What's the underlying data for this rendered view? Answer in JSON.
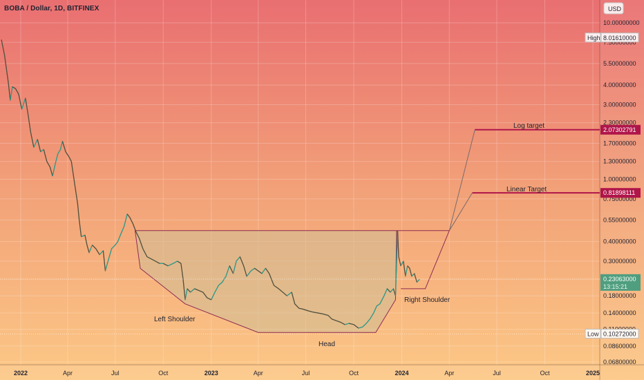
{
  "header": {
    "title": "BOBA / Dollar, 1D, BITFINEX"
  },
  "chart_data": {
    "type": "candlestick-line",
    "title": "BOBA / Dollar, 1D, BITFINEX",
    "y_scale": "log",
    "currency_label": "USD",
    "y_ticks": [
      {
        "v": 10.0,
        "label": "10.00000000"
      },
      {
        "v": 7.5,
        "label": "7.50000000"
      },
      {
        "v": 5.5,
        "label": "5.50000000"
      },
      {
        "v": 4.0,
        "label": "4.00000000"
      },
      {
        "v": 3.0,
        "label": "3.00000000"
      },
      {
        "v": 2.3,
        "label": "2.30000000"
      },
      {
        "v": 1.7,
        "label": "1.70000000"
      },
      {
        "v": 1.3,
        "label": "1.30000000"
      },
      {
        "v": 1.0,
        "label": "1.00000000"
      },
      {
        "v": 0.75,
        "label": "0.75000000"
      },
      {
        "v": 0.55,
        "label": "0.55000000"
      },
      {
        "v": 0.4,
        "label": "0.40000000"
      },
      {
        "v": 0.3,
        "label": "0.30000000"
      },
      {
        "v": 0.23,
        "label": "0.23000000"
      },
      {
        "v": 0.18,
        "label": "0.18000000"
      },
      {
        "v": 0.14,
        "label": "0.14000000"
      },
      {
        "v": 0.11,
        "label": "0.11000000"
      },
      {
        "v": 0.086,
        "label": "0.08600000"
      },
      {
        "v": 0.068,
        "label": "0.06800000"
      }
    ],
    "x_ticks": [
      {
        "d": "2022-01-01",
        "label": "2022",
        "bold": true
      },
      {
        "d": "2022-04-01",
        "label": "Apr"
      },
      {
        "d": "2022-07-01",
        "label": "Jul"
      },
      {
        "d": "2022-10-01",
        "label": "Oct"
      },
      {
        "d": "2023-01-01",
        "label": "2023",
        "bold": true
      },
      {
        "d": "2023-04-01",
        "label": "Apr"
      },
      {
        "d": "2023-07-01",
        "label": "Jul"
      },
      {
        "d": "2023-10-01",
        "label": "Oct"
      },
      {
        "d": "2024-01-01",
        "label": "2024",
        "bold": true
      },
      {
        "d": "2024-04-01",
        "label": "Apr"
      },
      {
        "d": "2024-07-01",
        "label": "Jul"
      },
      {
        "d": "2024-10-01",
        "label": "Oct"
      },
      {
        "d": "2025-01-01",
        "label": "2025",
        "bold": true
      }
    ],
    "series": [
      {
        "values": [
          [
            "2021-11-25",
            7.8
          ],
          [
            "2021-12-01",
            6.2
          ],
          [
            "2021-12-08",
            4.2
          ],
          [
            "2021-12-12",
            3.2
          ],
          [
            "2021-12-16",
            3.9
          ],
          [
            "2021-12-22",
            3.8
          ],
          [
            "2021-12-28",
            3.5
          ],
          [
            "2022-01-03",
            2.8
          ],
          [
            "2022-01-10",
            3.3
          ],
          [
            "2022-01-15",
            2.6
          ],
          [
            "2022-01-20",
            2.0
          ],
          [
            "2022-01-26",
            1.6
          ],
          [
            "2022-02-02",
            1.8
          ],
          [
            "2022-02-08",
            1.5
          ],
          [
            "2022-02-14",
            1.55
          ],
          [
            "2022-02-20",
            1.3
          ],
          [
            "2022-02-26",
            1.2
          ],
          [
            "2022-03-03",
            1.05
          ],
          [
            "2022-03-08",
            1.25
          ],
          [
            "2022-03-13",
            1.45
          ],
          [
            "2022-03-18",
            1.55
          ],
          [
            "2022-03-22",
            1.75
          ],
          [
            "2022-03-28",
            1.5
          ],
          [
            "2022-04-03",
            1.4
          ],
          [
            "2022-04-08",
            1.3
          ],
          [
            "2022-04-14",
            0.95
          ],
          [
            "2022-04-20",
            0.7
          ],
          [
            "2022-04-23",
            0.55
          ],
          [
            "2022-04-27",
            0.43
          ],
          [
            "2022-05-04",
            0.44
          ],
          [
            "2022-05-08",
            0.38
          ],
          [
            "2022-05-12",
            0.34
          ],
          [
            "2022-05-18",
            0.38
          ],
          [
            "2022-05-25",
            0.36
          ],
          [
            "2022-06-01",
            0.33
          ],
          [
            "2022-06-08",
            0.35
          ],
          [
            "2022-06-12",
            0.26
          ],
          [
            "2022-06-16",
            0.29
          ],
          [
            "2022-06-24",
            0.36
          ],
          [
            "2022-07-01",
            0.38
          ],
          [
            "2022-07-06",
            0.4
          ],
          [
            "2022-07-12",
            0.45
          ],
          [
            "2022-07-18",
            0.5
          ],
          [
            "2022-07-24",
            0.6
          ],
          [
            "2022-07-29",
            0.57
          ],
          [
            "2022-08-04",
            0.52
          ],
          [
            "2022-08-10",
            0.46
          ],
          [
            "2022-08-16",
            0.42
          ],
          [
            "2022-08-23",
            0.36
          ],
          [
            "2022-08-31",
            0.32
          ],
          [
            "2022-09-08",
            0.31
          ],
          [
            "2022-09-16",
            0.3
          ],
          [
            "2022-09-24",
            0.29
          ],
          [
            "2022-10-01",
            0.29
          ],
          [
            "2022-10-10",
            0.28
          ],
          [
            "2022-10-20",
            0.29
          ],
          [
            "2022-10-28",
            0.3
          ],
          [
            "2022-11-04",
            0.29
          ],
          [
            "2022-11-08",
            0.23
          ],
          [
            "2022-11-12",
            0.17
          ],
          [
            "2022-11-16",
            0.2
          ],
          [
            "2022-11-22",
            0.19
          ],
          [
            "2022-11-30",
            0.2
          ],
          [
            "2022-12-08",
            0.195
          ],
          [
            "2022-12-16",
            0.19
          ],
          [
            "2022-12-24",
            0.175
          ],
          [
            "2023-01-01",
            0.17
          ],
          [
            "2023-01-08",
            0.19
          ],
          [
            "2023-01-15",
            0.21
          ],
          [
            "2023-01-22",
            0.22
          ],
          [
            "2023-01-29",
            0.24
          ],
          [
            "2023-02-05",
            0.28
          ],
          [
            "2023-02-12",
            0.25
          ],
          [
            "2023-02-18",
            0.3
          ],
          [
            "2023-02-25",
            0.32
          ],
          [
            "2023-03-04",
            0.28
          ],
          [
            "2023-03-10",
            0.24
          ],
          [
            "2023-03-18",
            0.26
          ],
          [
            "2023-03-25",
            0.27
          ],
          [
            "2023-04-01",
            0.26
          ],
          [
            "2023-04-08",
            0.25
          ],
          [
            "2023-04-15",
            0.27
          ],
          [
            "2023-04-22",
            0.25
          ],
          [
            "2023-05-01",
            0.21
          ],
          [
            "2023-05-10",
            0.2
          ],
          [
            "2023-05-18",
            0.19
          ],
          [
            "2023-05-26",
            0.18
          ],
          [
            "2023-06-04",
            0.19
          ],
          [
            "2023-06-10",
            0.16
          ],
          [
            "2023-06-18",
            0.15
          ],
          [
            "2023-06-26",
            0.148
          ],
          [
            "2023-07-04",
            0.145
          ],
          [
            "2023-07-14",
            0.142
          ],
          [
            "2023-07-24",
            0.14
          ],
          [
            "2023-08-03",
            0.138
          ],
          [
            "2023-08-13",
            0.135
          ],
          [
            "2023-08-20",
            0.128
          ],
          [
            "2023-08-28",
            0.125
          ],
          [
            "2023-09-06",
            0.122
          ],
          [
            "2023-09-14",
            0.118
          ],
          [
            "2023-09-22",
            0.12
          ],
          [
            "2023-10-01",
            0.118
          ],
          [
            "2023-10-10",
            0.112
          ],
          [
            "2023-10-18",
            0.114
          ],
          [
            "2023-10-25",
            0.12
          ],
          [
            "2023-11-01",
            0.128
          ],
          [
            "2023-11-08",
            0.14
          ],
          [
            "2023-11-14",
            0.155
          ],
          [
            "2023-11-20",
            0.16
          ],
          [
            "2023-11-28",
            0.18
          ],
          [
            "2023-12-04",
            0.2
          ],
          [
            "2023-12-10",
            0.19
          ],
          [
            "2023-12-16",
            0.2
          ],
          [
            "2023-12-20",
            0.18
          ],
          [
            "2023-12-24",
            0.47
          ],
          [
            "2023-12-26",
            0.32
          ],
          [
            "2023-12-30",
            0.28
          ],
          [
            "2024-01-04",
            0.3
          ],
          [
            "2024-01-08",
            0.24
          ],
          [
            "2024-01-12",
            0.28
          ],
          [
            "2024-01-16",
            0.27
          ],
          [
            "2024-01-20",
            0.24
          ],
          [
            "2024-01-25",
            0.25
          ],
          [
            "2024-01-30",
            0.22
          ],
          [
            "2024-02-04",
            0.23
          ]
        ]
      }
    ],
    "pattern_labels": {
      "left_shoulder": "Left Shoulder",
      "head": "Head",
      "right_shoulder": "Right Shoulder",
      "log_target": "Log target",
      "linear_target": "Linear Target"
    },
    "neckline": 0.47,
    "pattern_outline": [
      [
        "2022-08-08",
        0.47
      ],
      [
        "2022-08-18",
        0.27
      ],
      [
        "2022-11-12",
        0.16
      ],
      [
        "2023-04-01",
        0.105
      ],
      [
        "2023-11-12",
        0.105
      ],
      [
        "2023-12-20",
        0.17
      ],
      [
        "2023-12-22",
        0.47
      ],
      [
        "2024-04-01",
        0.47
      ]
    ],
    "right_shoulder_outline": [
      [
        "2023-12-30",
        0.2
      ],
      [
        "2024-02-15",
        0.2
      ],
      [
        "2024-04-01",
        0.47
      ]
    ],
    "target_lines": [
      {
        "from": [
          "2024-04-01",
          0.47
        ],
        "to": [
          "2024-05-20",
          2.07302791
        ],
        "end": "2025-02-28",
        "value": 2.07302791
      },
      {
        "from": [
          "2024-04-01",
          0.47
        ],
        "to": [
          "2024-05-15",
          0.81898111
        ],
        "end": "2025-02-28",
        "value": 0.81898111
      }
    ],
    "price_tags": [
      {
        "kind": "high",
        "label": "High",
        "value": "8.01610000",
        "v": 8.0161
      },
      {
        "kind": "log",
        "value": "2.07302791",
        "v": 2.07302791
      },
      {
        "kind": "linear",
        "value": "0.81898111",
        "v": 0.81898111
      },
      {
        "kind": "current",
        "value": "0.23063000",
        "v": 0.23063,
        "sub": "13:15:21"
      },
      {
        "kind": "low",
        "label": "Low",
        "value": "0.10272000",
        "v": 0.10272
      }
    ],
    "colors": {
      "up": "#26a69a",
      "down": "#ef5350",
      "pattern_line": "#8e2a52",
      "target_line": "#b0154a",
      "current_tag": "#4f9e7f"
    }
  }
}
